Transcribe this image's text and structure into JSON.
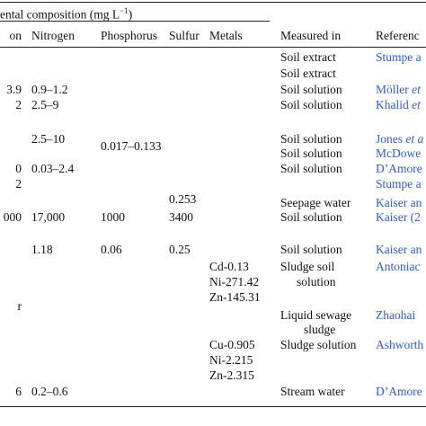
{
  "header": {
    "group_title": "ental composition (mg L",
    "group_title_sup": "−1",
    "group_title_close": ")",
    "columns": [
      "on",
      "Nitrogen",
      "Phosphorus",
      "Sulfur",
      "Metals",
      "Measured in",
      "Referenc"
    ]
  },
  "rows": [
    {
      "measured_in": "Soil extract",
      "reference": "Stumpe a"
    },
    {
      "measured_in": "Soil extract"
    },
    {
      "carbon": "3.9",
      "nitrogen": "0.9–1.2",
      "measured_in": "Soil solution",
      "reference": "Möller ",
      "reference_italic": "et"
    },
    {
      "carbon": "2",
      "nitrogen": "2.5–9",
      "measured_in": "Soil solution",
      "reference": "Khalid ",
      "reference_italic": "et"
    },
    {
      "nitrogen": "2.5–10",
      "measured_in": "Soil solution",
      "reference": "Jones ",
      "reference_italic": "et a"
    },
    {
      "phosphorus": "0.017–0.133"
    },
    {
      "measured_in": "Soil solution",
      "reference": "McDowe"
    },
    {
      "carbon": "0",
      "nitrogen": "0.03–2.4",
      "measured_in": "Soil solution",
      "reference": "D’Amore"
    },
    {
      "carbon": "2",
      "reference": "Stumpe a"
    },
    {
      "sulfur": "0.253"
    },
    {
      "measured_in": "Seepage water",
      "reference": "Kaiser an"
    },
    {
      "carbon": "000",
      "nitrogen": "17,000",
      "phosphorus": "1000",
      "sulfur": "3400",
      "measured_in": "Soil solution",
      "reference": "Kaiser (2"
    },
    {
      "nitrogen": "1.18",
      "phosphorus": "0.06",
      "sulfur": "0.25",
      "measured_in": "Soil solution",
      "reference": "Kaiser an"
    },
    {
      "metals": "Cd-0.13",
      "measured_in": "Sludge soil",
      "reference": "Antoniac"
    },
    {
      "metals": "Ni-271.42",
      "measured_in": "solution"
    },
    {
      "metals": "Zn-145.31"
    },
    {
      "carbon": "r"
    },
    {
      "measured_in": "Liquid sewage",
      "reference": "Zhaohai"
    },
    {
      "measured_in": "sludge"
    },
    {
      "metals": "Cu-0.905",
      "measured_in": "Sludge solution",
      "reference": "Ashworth"
    },
    {
      "metals": "Ni-2.215"
    },
    {
      "metals": "Zn-2.315"
    },
    {
      "carbon": "6",
      "nitrogen": "0.2–0.6",
      "measured_in": "Stream water",
      "reference": "D’Amore"
    }
  ]
}
